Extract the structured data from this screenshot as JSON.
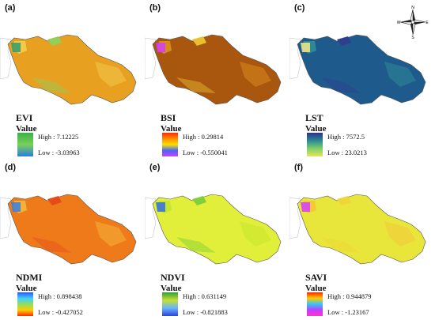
{
  "panels": [
    {
      "label": "(a)",
      "index": "EVI",
      "value_title": "Value",
      "high": "High : 7.12225",
      "low": "Low : -3.03963",
      "colors": {
        "base": "#e8a021",
        "west": "#f2c94c",
        "north": "#8fcf5a",
        "accent": "#2f9e6b"
      },
      "legend_stops": [
        "#38b24a",
        "#7ad05a",
        "#2b7de1"
      ]
    },
    {
      "label": "(b)",
      "index": "BSI",
      "value_title": "Value",
      "high": "High : 0.29814",
      "low": "Low : -0.550041",
      "colors": {
        "base": "#a9560f",
        "west": "#d98a1c",
        "north": "#e9c030",
        "accent": "#d63bff"
      },
      "legend_stops": [
        "#ff2a00",
        "#ff8a00",
        "#ffe000",
        "#4466ff",
        "#d23cff"
      ]
    },
    {
      "label": "(c)",
      "index": "LST",
      "value_title": "Value",
      "high": "High : 7572.5",
      "low": "Low : 23.0213",
      "colors": {
        "base": "#1f5a8c",
        "west": "#2c8a96",
        "north": "#2f3f8f",
        "accent": "#f7e88a"
      },
      "legend_stops": [
        "#2b2f8f",
        "#2d8a94",
        "#7ed06a",
        "#e8e65a"
      ]
    },
    {
      "label": "(d)",
      "index": "NDMI",
      "value_title": "Value",
      "high": "High : 0.898438",
      "low": "Low : -0.427052",
      "colors": {
        "base": "#ef7a1a",
        "west": "#f2b23a",
        "north": "#e44d1a",
        "accent": "#3a7fe0"
      },
      "legend_stops": [
        "#2a57ff",
        "#3fd0ff",
        "#8fe060",
        "#ffcc00",
        "#ff2a00"
      ]
    },
    {
      "label": "(e)",
      "index": "NDVI",
      "value_title": "Value",
      "high": "High : 0.631149",
      "low": "Low : -0.821883",
      "colors": {
        "base": "#e1ef3a",
        "west": "#c8e62e",
        "north": "#7fd03a",
        "accent": "#2f6fe0"
      },
      "legend_stops": [
        "#2ea03a",
        "#c8e030",
        "#66b3ff",
        "#2b44d8"
      ]
    },
    {
      "label": "(f)",
      "index": "SAVI",
      "value_title": "Value",
      "high": "High : 0.944879",
      "low": "Low : -1.23167",
      "colors": {
        "base": "#e8e63a",
        "west": "#f2c93a",
        "north": "#f0d43a",
        "accent": "#d63bff"
      },
      "legend_stops": [
        "#ff2a00",
        "#ffcc00",
        "#33c4ff",
        "#c23cff",
        "#ff33cc"
      ]
    }
  ],
  "compass": {
    "n": "N",
    "s": "S",
    "e": "E",
    "w": "W"
  }
}
